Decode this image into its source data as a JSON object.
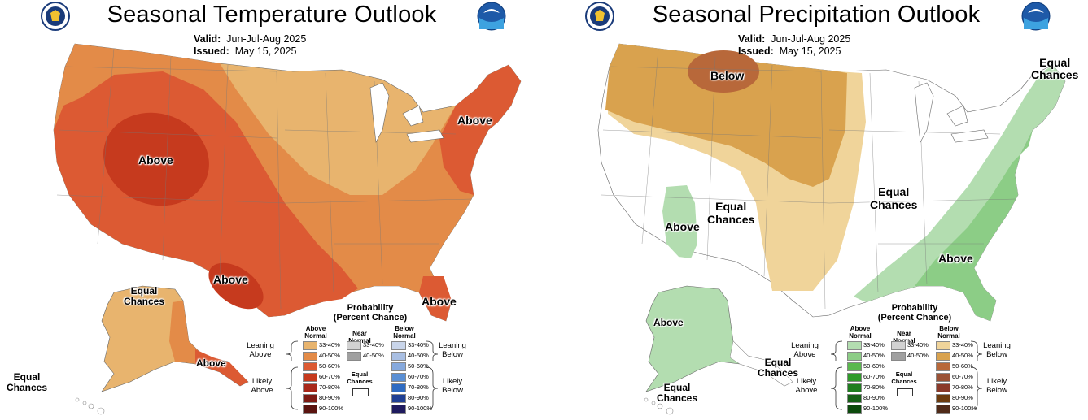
{
  "temperature": {
    "title": "Seasonal Temperature Outlook",
    "valid_label": "Valid:",
    "valid_value": "Jun-Jul-Aug 2025",
    "issued_label": "Issued:",
    "issued_value": "May 15, 2025",
    "map_labels": {
      "above_west": "Above",
      "above_northeast": "Above",
      "above_texas": "Above",
      "above_florida": "Above",
      "above_alaska": "Above",
      "equal_alaska_1": "Equal",
      "equal_alaska_2": "Chances",
      "equal_hawaii_1": "Equal",
      "equal_hawaii_2": "Chances"
    }
  },
  "precipitation": {
    "title": "Seasonal Precipitation Outlook",
    "valid_label": "Valid:",
    "valid_value": "Jun-Jul-Aug 2025",
    "issued_label": "Issued:",
    "issued_value": "May 15, 2025",
    "map_labels": {
      "below_north": "Below",
      "equal_ne_1": "Equal",
      "equal_ne_2": "Chances",
      "equal_central_1": "Equal",
      "equal_central_2": "Chances",
      "equal_sw_1": "Equal",
      "equal_sw_2": "Chances",
      "above_sw": "Above",
      "above_southeast": "Above",
      "above_alaska": "Above",
      "equal_ak_south_1": "Equal",
      "equal_ak_south_2": "Chances",
      "equal_hawaii_1": "Equal",
      "equal_hawaii_2": "Chances"
    }
  },
  "legend_temperature": {
    "title_1": "Probability",
    "title_2": "(Percent Chance)",
    "col_above_1": "Above",
    "col_above_2": "Normal",
    "col_near_1": "Near",
    "col_near_2": "Normal",
    "col_below_1": "Below",
    "col_below_2": "Normal",
    "leaning_above_1": "Leaning",
    "leaning_above_2": "Above",
    "leaning_below_1": "Leaning",
    "leaning_below_2": "Below",
    "likely_above_1": "Likely",
    "likely_above_2": "Above",
    "likely_below_1": "Likely",
    "likely_below_2": "Below",
    "equal_1": "Equal",
    "equal_2": "Chances",
    "above_ranges": [
      "33-40%",
      "40-50%",
      "50-60%",
      "60-70%",
      "70-80%",
      "80-90%",
      "90-100%"
    ],
    "near_ranges": [
      "33-40%",
      "40-50%"
    ],
    "below_ranges": [
      "33-40%",
      "40-50%",
      "50-60%",
      "60-70%",
      "70-80%",
      "80-90%",
      "90-100%"
    ],
    "above_colors": [
      "#e8b46e",
      "#e38b48",
      "#dc5a33",
      "#c63a1e",
      "#a8281a",
      "#7e1b14",
      "#5a130f"
    ],
    "near_colors": [
      "#d2d2d2",
      "#a0a0a0"
    ],
    "below_colors": [
      "#c9d5ea",
      "#a9bfe3",
      "#86a9dd",
      "#5a8fd4",
      "#2e6bc2",
      "#1f3f94",
      "#1e1a5e"
    ]
  },
  "legend_precipitation": {
    "title_1": "Probability",
    "title_2": "(Percent Chance)",
    "col_above_1": "Above",
    "col_above_2": "Normal",
    "col_near_1": "Near",
    "col_near_2": "Normal",
    "col_below_1": "Below",
    "col_below_2": "Normal",
    "leaning_above_1": "Leaning",
    "leaning_above_2": "Above",
    "leaning_below_1": "Leaning",
    "leaning_below_2": "Below",
    "likely_above_1": "Likely",
    "likely_above_2": "Above",
    "likely_below_1": "Likely",
    "likely_below_2": "Below",
    "equal_1": "Equal",
    "equal_2": "Chances",
    "above_ranges": [
      "33-40%",
      "40-50%",
      "50-60%",
      "60-70%",
      "70-80%",
      "80-90%",
      "90-100%"
    ],
    "near_ranges": [
      "33-40%",
      "40-50%"
    ],
    "below_ranges": [
      "33-40%",
      "40-50%",
      "50-60%",
      "60-70%",
      "70-80%",
      "80-90%",
      "90-100%"
    ],
    "above_colors": [
      "#b3ddb0",
      "#8ccd86",
      "#5ab84e",
      "#2f9a2a",
      "#1f7d1f",
      "#156015",
      "#0c4a0c"
    ],
    "near_colors": [
      "#d2d2d2",
      "#a0a0a0"
    ],
    "below_colors": [
      "#f0d49a",
      "#d9a24e",
      "#b8683a",
      "#9a5236",
      "#8a3a2a",
      "#6c3b0e",
      "#4f2a18"
    ]
  }
}
